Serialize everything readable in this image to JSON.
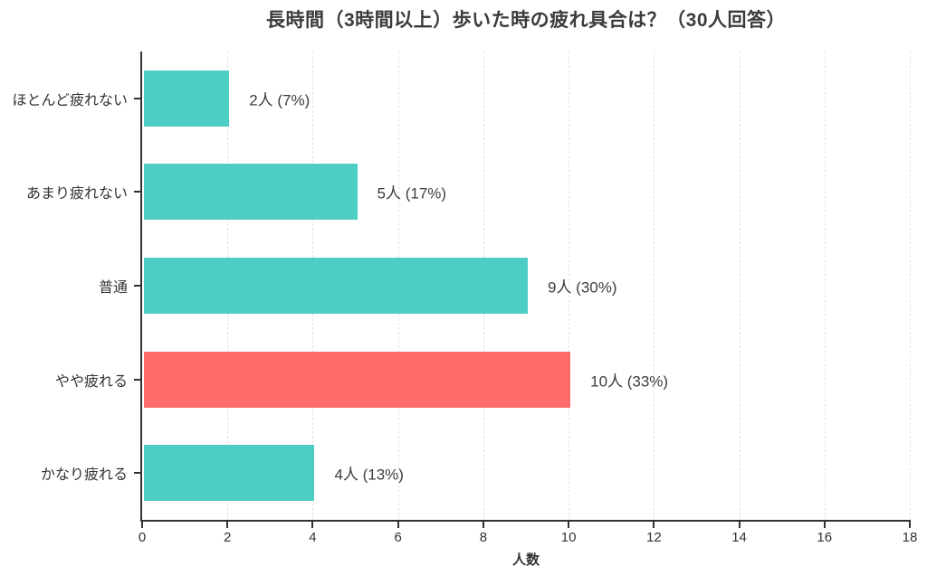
{
  "chart_data": {
    "type": "bar",
    "orientation": "horizontal",
    "title": "長時間（3時間以上）歩いた時の疲れ具合は？（30人回答）",
    "categories": [
      "ほとんど疲れない",
      "あまり疲れない",
      "普通",
      "やや疲れる",
      "かなり疲れる"
    ],
    "values": [
      2,
      5,
      9,
      10,
      4
    ],
    "value_labels": [
      "2人 (7%)",
      "5人 (17%)",
      "9人 (30%)",
      "10人 (33%)",
      "4人 (13%)"
    ],
    "bar_colors": [
      "#4ecdc4",
      "#4ecdc4",
      "#4ecdc4",
      "#ff6b6b",
      "#4ecdc4"
    ],
    "xlabel": "人数",
    "xlim": [
      0,
      18
    ],
    "xticks": [
      0,
      2,
      4,
      6,
      8,
      10,
      12,
      14,
      16,
      18
    ],
    "grid": "vertical-dashed",
    "legend": "none",
    "colors": {
      "base_bar": "#4ecdc4",
      "highlight_bar": "#ff6b6b",
      "axis": "#333333",
      "grid": "#e3e3e3",
      "title_text": "#3b3b3b",
      "value_text": "#3d3d3d",
      "background": "#ffffff"
    }
  }
}
